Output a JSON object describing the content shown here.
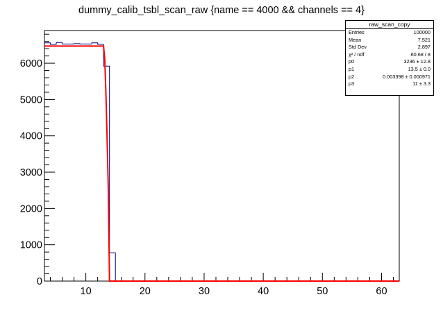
{
  "title": "dummy_calib_tsbl_scan_raw {name == 4000 && channels == 4}",
  "stats": {
    "name": "raw_scan_copy",
    "rows": [
      {
        "label": "Entries",
        "value": "100000"
      },
      {
        "label": "Mean",
        "value": "7.521"
      },
      {
        "label": "Std Dev",
        "value": "2.897"
      },
      {
        "label": "χ² / ndf",
        "value": "60.68 / 8"
      },
      {
        "label": "p0",
        "value": "3236 ± 12.8"
      },
      {
        "label": "p1",
        "value": "13.5 ± 0.0"
      },
      {
        "label": "p2",
        "value": "0.003398 ± 0.000971"
      },
      {
        "label": "p3",
        "value": "11 ± 3.3"
      }
    ]
  },
  "chart_data": {
    "type": "histogram",
    "title": "dummy_calib_tsbl_scan_raw {name == 4000 && channels == 4}",
    "xlabel": "",
    "ylabel": "",
    "xlim": [
      3,
      63
    ],
    "ylim": [
      0,
      6900
    ],
    "xticks": [
      10,
      20,
      30,
      40,
      50,
      60
    ],
    "yticks": [
      0,
      1000,
      2000,
      3000,
      4000,
      5000,
      6000
    ],
    "series": [
      {
        "type": "step",
        "color": "#000080",
        "bin_width": 1,
        "bin_edges_start": 3,
        "values": [
          6560,
          6520,
          6570,
          6530,
          6530,
          6540,
          6530,
          6530,
          6560,
          6520,
          5920,
          780,
          0,
          0,
          0,
          0,
          0,
          0,
          0,
          0,
          0,
          0,
          0,
          0,
          0,
          0,
          0,
          0,
          0,
          0,
          0,
          0,
          0,
          0,
          0,
          0,
          0,
          0,
          0,
          0,
          0,
          0,
          0,
          0,
          0,
          0,
          0,
          0,
          0,
          0,
          0,
          0,
          0,
          0,
          0,
          0,
          0,
          0,
          0,
          0
        ]
      },
      {
        "type": "fit",
        "color": "#ff0000",
        "x": [
          3,
          13.0,
          13.2,
          13.4,
          13.6,
          13.8,
          14.0,
          14.2,
          63
        ],
        "y": [
          6472,
          6472,
          6100,
          5150,
          3900,
          2540,
          0,
          0,
          0
        ]
      }
    ],
    "grid": false,
    "legend": "stats box top-right"
  },
  "colors": {
    "histogram": "#000080",
    "fit": "#ff0000",
    "frame": "#000000"
  }
}
